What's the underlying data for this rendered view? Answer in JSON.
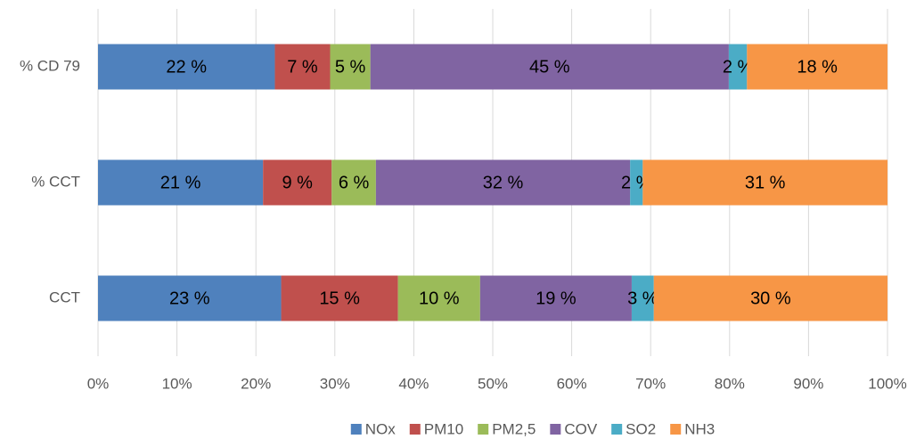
{
  "chart_data": {
    "type": "bar",
    "orientation": "horizontal",
    "stacked": true,
    "categories": [
      "% CD 79",
      "% CCT",
      "CCT"
    ],
    "series": [
      {
        "name": "NOx",
        "color": "#4f81bd",
        "values": [
          22.4,
          20.9,
          23.2
        ],
        "value_labels": [
          "22 %",
          "21 %",
          "23 %"
        ]
      },
      {
        "name": "PM10",
        "color": "#c0504d",
        "values": [
          7.0,
          8.7,
          14.8
        ],
        "value_labels": [
          "7 %",
          "9 %",
          "15 %"
        ]
      },
      {
        "name": "PM2,5",
        "color": "#9bbb59",
        "values": [
          5.1,
          5.6,
          10.4
        ],
        "value_labels": [
          "5 %",
          "6 %",
          "10 %"
        ]
      },
      {
        "name": "COV",
        "color": "#8064a2",
        "values": [
          45.4,
          32.2,
          19.2
        ],
        "value_labels": [
          "45 %",
          "32 %",
          "19 %"
        ]
      },
      {
        "name": "SO2",
        "color": "#4bacc6",
        "values": [
          2.3,
          1.6,
          2.8
        ],
        "value_labels": [
          "2 %",
          "2 %",
          "3 %"
        ]
      },
      {
        "name": "NH3",
        "color": "#f79646",
        "values": [
          17.8,
          31.0,
          29.6
        ],
        "value_labels": [
          "18 %",
          "31 %",
          "30 %"
        ]
      }
    ],
    "xlim": [
      0,
      100
    ],
    "xticks": [
      {
        "value": 0,
        "label": "0%"
      },
      {
        "value": 10,
        "label": "10%"
      },
      {
        "value": 20,
        "label": "20%"
      },
      {
        "value": 30,
        "label": "30%"
      },
      {
        "value": 40,
        "label": "40%"
      },
      {
        "value": 50,
        "label": "50%"
      },
      {
        "value": 60,
        "label": "60%"
      },
      {
        "value": 70,
        "label": "70%"
      },
      {
        "value": 80,
        "label": "80%"
      },
      {
        "value": 90,
        "label": "90%"
      },
      {
        "value": 100,
        "label": "100%"
      }
    ],
    "grid": true,
    "legend": "bottom"
  }
}
